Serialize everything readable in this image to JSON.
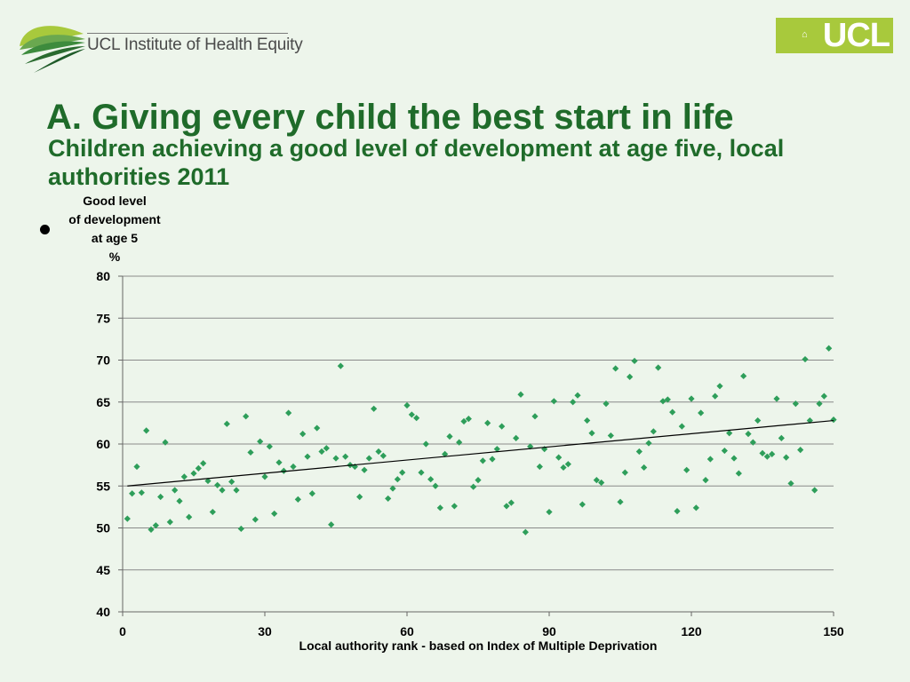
{
  "header": {
    "org_name": "UCL Institute of Health Equity",
    "ucl_logo_text": "UCL",
    "logo_color": "#a8c93c"
  },
  "slide": {
    "title": "A. Giving every child the best start in life",
    "bullet": ""
  },
  "chart_data": {
    "type": "scatter",
    "title": "Children achieving a good level of development at age five, local authorities 2011",
    "ylabel_lines": [
      "Good level",
      "of development",
      "at age 5",
      "%"
    ],
    "xlabel": "Local authority rank - based on Index of Multiple Deprivation",
    "xlim": [
      0,
      150
    ],
    "ylim": [
      40,
      80
    ],
    "x_ticks": [
      0,
      30,
      60,
      90,
      120,
      150
    ],
    "y_ticks": [
      40,
      45,
      50,
      55,
      60,
      65,
      70,
      75,
      80
    ],
    "grid": "horizontal",
    "marker_color": "#2e9e5a",
    "trendline": {
      "x": [
        1,
        150
      ],
      "y": [
        55.0,
        62.8
      ]
    },
    "points": [
      [
        1,
        51.1
      ],
      [
        2,
        54.1
      ],
      [
        3,
        57.3
      ],
      [
        4,
        54.2
      ],
      [
        5,
        61.6
      ],
      [
        6,
        49.8
      ],
      [
        7,
        50.3
      ],
      [
        8,
        53.7
      ],
      [
        9,
        60.2
      ],
      [
        10,
        50.7
      ],
      [
        11,
        54.5
      ],
      [
        12,
        53.2
      ],
      [
        13,
        56.1
      ],
      [
        14,
        51.3
      ],
      [
        15,
        56.5
      ],
      [
        16,
        57.1
      ],
      [
        17,
        57.7
      ],
      [
        18,
        55.6
      ],
      [
        19,
        51.9
      ],
      [
        20,
        55.1
      ],
      [
        21,
        54.5
      ],
      [
        22,
        62.4
      ],
      [
        23,
        55.5
      ],
      [
        24,
        54.5
      ],
      [
        25,
        49.9
      ],
      [
        26,
        63.3
      ],
      [
        27,
        59.0
      ],
      [
        28,
        51.0
      ],
      [
        29,
        60.3
      ],
      [
        30,
        56.1
      ],
      [
        31,
        59.7
      ],
      [
        32,
        51.7
      ],
      [
        33,
        57.8
      ],
      [
        34,
        56.8
      ],
      [
        35,
        63.7
      ],
      [
        36,
        57.3
      ],
      [
        37,
        53.4
      ],
      [
        38,
        61.2
      ],
      [
        39,
        58.5
      ],
      [
        40,
        54.1
      ],
      [
        41,
        61.9
      ],
      [
        42,
        59.1
      ],
      [
        43,
        59.5
      ],
      [
        44,
        50.4
      ],
      [
        45,
        58.3
      ],
      [
        46,
        69.3
      ],
      [
        47,
        58.5
      ],
      [
        48,
        57.5
      ],
      [
        49,
        57.3
      ],
      [
        50,
        53.7
      ],
      [
        51,
        56.9
      ],
      [
        52,
        58.3
      ],
      [
        53,
        64.2
      ],
      [
        54,
        59.1
      ],
      [
        55,
        58.6
      ],
      [
        56,
        53.5
      ],
      [
        57,
        54.7
      ],
      [
        58,
        55.8
      ],
      [
        59,
        56.6
      ],
      [
        60,
        64.6
      ],
      [
        61,
        63.5
      ],
      [
        62,
        63.1
      ],
      [
        63,
        56.6
      ],
      [
        64,
        60.0
      ],
      [
        65,
        55.8
      ],
      [
        66,
        55.0
      ],
      [
        67,
        52.4
      ],
      [
        68,
        58.8
      ],
      [
        69,
        60.9
      ],
      [
        70,
        52.6
      ],
      [
        71,
        60.2
      ],
      [
        72,
        62.7
      ],
      [
        73,
        63.0
      ],
      [
        74,
        54.9
      ],
      [
        75,
        55.7
      ],
      [
        76,
        58.0
      ],
      [
        77,
        62.5
      ],
      [
        78,
        58.2
      ],
      [
        79,
        59.4
      ],
      [
        80,
        62.1
      ],
      [
        81,
        52.6
      ],
      [
        82,
        53.0
      ],
      [
        83,
        60.7
      ],
      [
        84,
        65.9
      ],
      [
        85,
        49.5
      ],
      [
        86,
        59.7
      ],
      [
        87,
        63.3
      ],
      [
        88,
        57.3
      ],
      [
        89,
        59.4
      ],
      [
        90,
        51.9
      ],
      [
        91,
        65.1
      ],
      [
        92,
        58.4
      ],
      [
        93,
        57.2
      ],
      [
        94,
        57.6
      ],
      [
        95,
        65.0
      ],
      [
        96,
        65.8
      ],
      [
        97,
        52.8
      ],
      [
        98,
        62.8
      ],
      [
        99,
        61.3
      ],
      [
        100,
        55.7
      ],
      [
        101,
        55.4
      ],
      [
        102,
        64.8
      ],
      [
        103,
        61.0
      ],
      [
        104,
        69.0
      ],
      [
        105,
        53.1
      ],
      [
        106,
        56.6
      ],
      [
        107,
        68.0
      ],
      [
        108,
        69.9
      ],
      [
        109,
        59.1
      ],
      [
        110,
        57.2
      ],
      [
        111,
        60.1
      ],
      [
        112,
        61.5
      ],
      [
        113,
        69.1
      ],
      [
        114,
        65.1
      ],
      [
        115,
        65.3
      ],
      [
        116,
        63.8
      ],
      [
        117,
        52.0
      ],
      [
        118,
        62.1
      ],
      [
        119,
        56.9
      ],
      [
        120,
        65.4
      ],
      [
        121,
        52.4
      ],
      [
        122,
        63.7
      ],
      [
        123,
        55.7
      ],
      [
        124,
        58.2
      ],
      [
        125,
        65.7
      ],
      [
        126,
        66.9
      ],
      [
        127,
        59.2
      ],
      [
        128,
        61.3
      ],
      [
        129,
        58.3
      ],
      [
        130,
        56.5
      ],
      [
        131,
        68.1
      ],
      [
        132,
        61.2
      ],
      [
        133,
        60.2
      ],
      [
        134,
        62.8
      ],
      [
        135,
        58.9
      ],
      [
        136,
        58.5
      ],
      [
        137,
        58.8
      ],
      [
        138,
        65.4
      ],
      [
        139,
        60.7
      ],
      [
        140,
        58.4
      ],
      [
        141,
        55.3
      ],
      [
        142,
        64.8
      ],
      [
        143,
        59.3
      ],
      [
        144,
        70.1
      ],
      [
        145,
        62.8
      ],
      [
        146,
        54.5
      ],
      [
        147,
        64.8
      ],
      [
        148,
        65.7
      ],
      [
        149,
        71.4
      ],
      [
        150,
        62.9
      ]
    ]
  }
}
